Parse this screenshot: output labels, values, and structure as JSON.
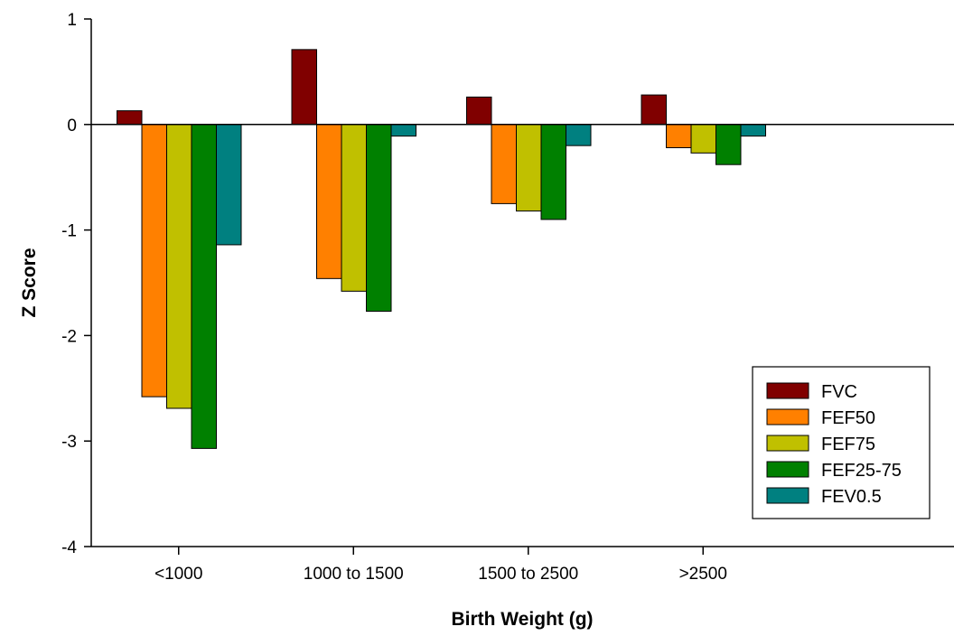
{
  "chart_data": {
    "type": "bar",
    "title": "",
    "xlabel": "Birth Weight (g)",
    "ylabel": "Z Score",
    "categories": [
      "<1000",
      "1000 to 1500",
      "1500 to 2500",
      ">2500"
    ],
    "series": [
      {
        "name": "FVC",
        "color": "#800000",
        "values": [
          0.13,
          0.71,
          0.26,
          0.28
        ]
      },
      {
        "name": "FEF50",
        "color": "#FF8000",
        "values": [
          -2.58,
          -1.46,
          -0.75,
          -0.22
        ]
      },
      {
        "name": "FEF75",
        "color": "#C0C000",
        "values": [
          -2.69,
          -1.58,
          -0.82,
          -0.27
        ]
      },
      {
        "name": "FEF25-75",
        "color": "#008000",
        "values": [
          -3.07,
          -1.77,
          -0.9,
          -0.38
        ]
      },
      {
        "name": "FEV0.5",
        "color": "#008080",
        "values": [
          -1.14,
          -0.11,
          -0.2,
          -0.11
        ]
      }
    ],
    "ylim": [
      -4,
      1
    ],
    "yticks": [
      1,
      0,
      -1,
      -2,
      -3,
      -4
    ],
    "grid": false,
    "legend": "bottom-right"
  }
}
